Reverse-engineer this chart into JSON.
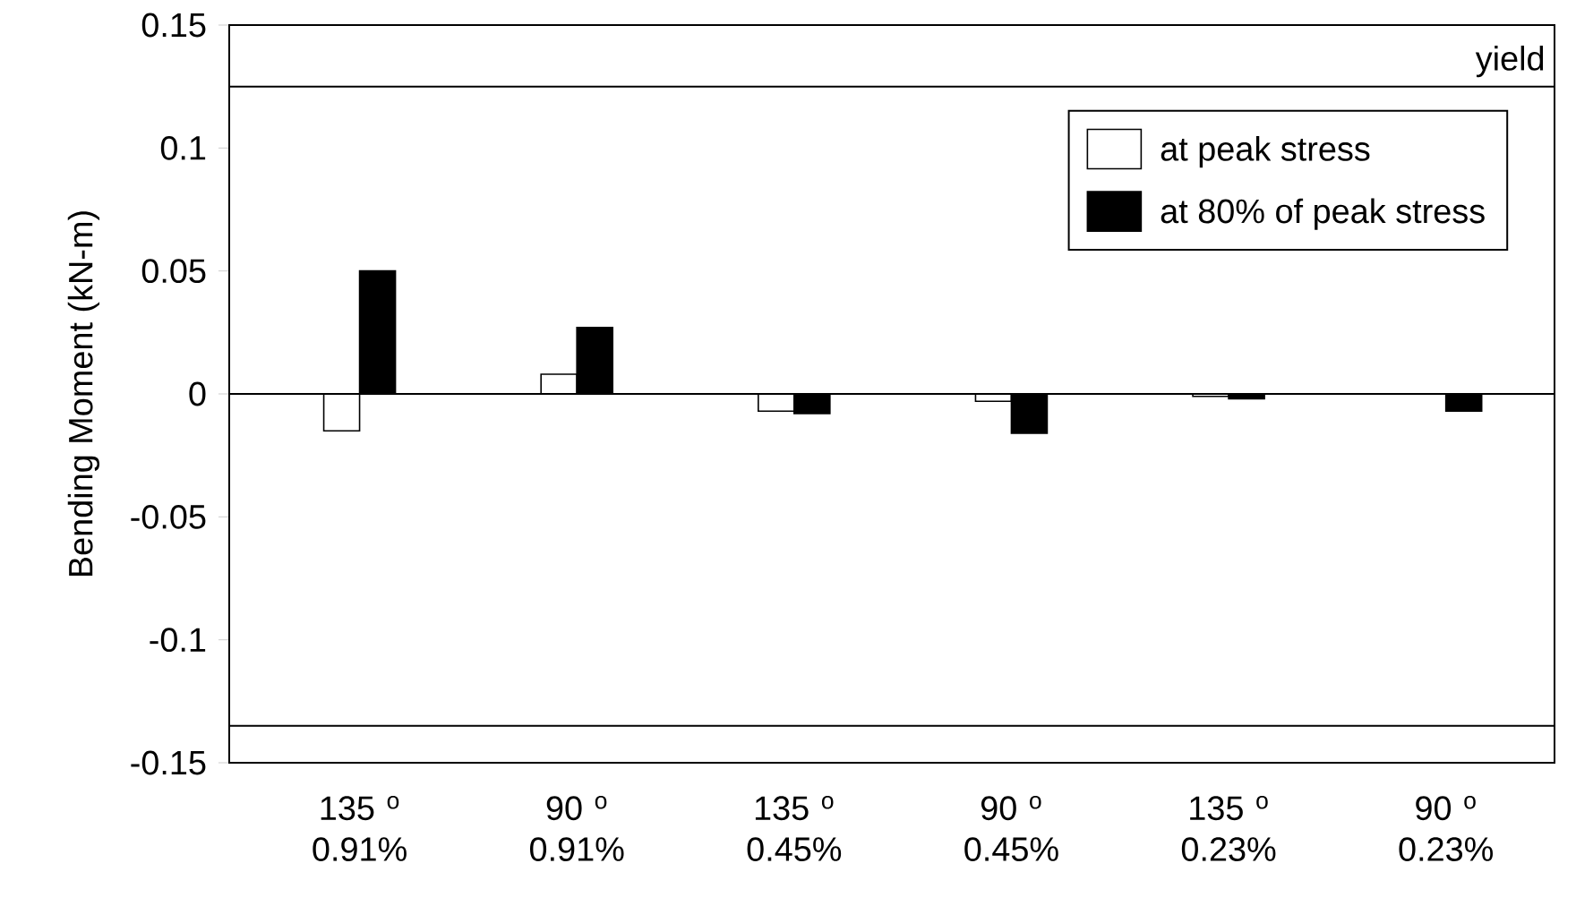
{
  "chart_data": {
    "type": "bar",
    "ylabel": "Bending Moment (kN-m)",
    "categories": [
      "135 $^{o}$ 0.91%",
      "90 $^{o}$ 0.91%",
      "135 $^{o}$ 0.45%",
      "90 $^{o}$ 0.45%",
      "135 $^{o}$ 0.23%",
      "90 $^{o}$ 0.23%"
    ],
    "series": [
      {
        "name": "at peak stress",
        "color": "#ffffff",
        "values": [
          -0.015,
          0.008,
          -0.007,
          -0.003,
          -0.001,
          null
        ]
      },
      {
        "name": "at 80% of peak stress",
        "color": "#000000",
        "values": [
          0.05,
          0.027,
          -0.008,
          -0.016,
          -0.002,
          -0.007
        ]
      }
    ],
    "ylim": [
      -0.15,
      0.15
    ],
    "yticks": [
      -0.15,
      -0.1,
      -0.05,
      0,
      0.05,
      0.1,
      0.15
    ],
    "ref_lines": [
      {
        "axis": "y",
        "value": 0.125,
        "label": "yield"
      },
      {
        "axis": "y",
        "value": -0.135
      },
      {
        "axis": "y",
        "value": 0
      }
    ],
    "legend": "top right",
    "grid": false
  }
}
